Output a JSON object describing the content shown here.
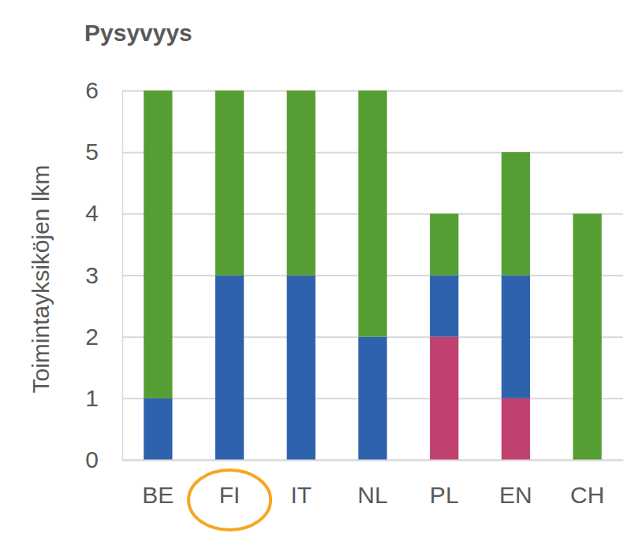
{
  "chart_data": {
    "type": "bar",
    "title": "Pysyvyys",
    "y_label": "Toimintayksiköjen lkm",
    "categories": [
      "BE",
      "FI",
      "IT",
      "NL",
      "PL",
      "EN",
      "CH"
    ],
    "series": [
      {
        "color": "#c0406f",
        "values": [
          0,
          0,
          0,
          0,
          2,
          1,
          0
        ]
      },
      {
        "color": "#2e62ad",
        "values": [
          1,
          3,
          3,
          2,
          1,
          2,
          0
        ]
      },
      {
        "color": "#559e33",
        "values": [
          5,
          3,
          3,
          4,
          1,
          2,
          4
        ]
      }
    ],
    "stacked": true,
    "grid": true,
    "ylim": [
      0,
      6
    ],
    "yticks": [
      0,
      1,
      2,
      3,
      4,
      5,
      6
    ]
  }
}
